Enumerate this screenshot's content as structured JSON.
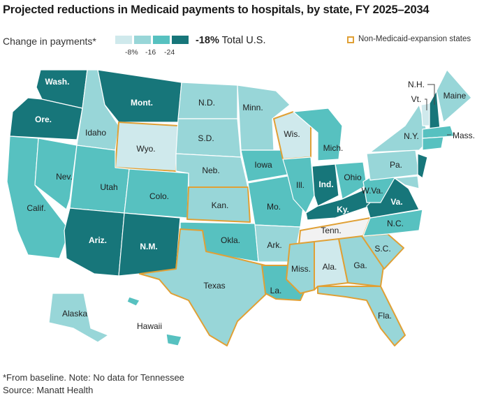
{
  "title": "Projected reductions in Medicaid payments to hospitals, by state, FY 2025–2034",
  "legend": {
    "label": "Change in payments*",
    "ticks": [
      "-8%",
      "-16",
      "-24"
    ],
    "colors": [
      "#cfe9ec",
      "#98d6d8",
      "#57c1c0",
      "#17767a"
    ]
  },
  "total": {
    "value": "-18%",
    "label": "Total U.S."
  },
  "non_expansion_label": "Non-Medicaid-expansion states",
  "non_expansion_color": "#e0a035",
  "footnote": "*From baseline. Note: No data for Tennessee",
  "source": "Source:  Manatt Health",
  "states": [
    {
      "abbr": "Wash.",
      "level": 4
    },
    {
      "abbr": "Ore.",
      "level": 4
    },
    {
      "abbr": "Calif.",
      "level": 3
    },
    {
      "abbr": "Nev.",
      "level": 3
    },
    {
      "abbr": "Idaho",
      "level": 2
    },
    {
      "abbr": "Mont.",
      "level": 4
    },
    {
      "abbr": "Wyo.",
      "level": 1,
      "non_expansion": true
    },
    {
      "abbr": "Utah",
      "level": 3
    },
    {
      "abbr": "Colo.",
      "level": 3
    },
    {
      "abbr": "Ariz.",
      "level": 4
    },
    {
      "abbr": "N.M.",
      "level": 4
    },
    {
      "abbr": "N.D.",
      "level": 2
    },
    {
      "abbr": "S.D.",
      "level": 2,
      "non_expansion": false
    },
    {
      "abbr": "Neb.",
      "level": 2
    },
    {
      "abbr": "Kan.",
      "level": 2,
      "non_expansion": true
    },
    {
      "abbr": "Okla.",
      "level": 3
    },
    {
      "abbr": "Texas",
      "level": 2,
      "non_expansion": true
    },
    {
      "abbr": "Minn.",
      "level": 2
    },
    {
      "abbr": "Iowa",
      "level": 3
    },
    {
      "abbr": "Mo.",
      "level": 3
    },
    {
      "abbr": "Ark.",
      "level": 2
    },
    {
      "abbr": "La.",
      "level": 3
    },
    {
      "abbr": "Wis.",
      "level": 1,
      "non_expansion": true
    },
    {
      "abbr": "Ill.",
      "level": 3
    },
    {
      "abbr": "Mich.",
      "level": 3
    },
    {
      "abbr": "Ind.",
      "level": 4
    },
    {
      "abbr": "Ohio",
      "level": 3
    },
    {
      "abbr": "Ky.",
      "level": 4
    },
    {
      "abbr": "Tenn.",
      "level": 0,
      "non_expansion": true
    },
    {
      "abbr": "Miss.",
      "level": 2,
      "non_expansion": true
    },
    {
      "abbr": "Ala.",
      "level": 1,
      "non_expansion": true
    },
    {
      "abbr": "Ga.",
      "level": 2,
      "non_expansion": true
    },
    {
      "abbr": "Fla.",
      "level": 2,
      "non_expansion": true
    },
    {
      "abbr": "S.C.",
      "level": 2,
      "non_expansion": true
    },
    {
      "abbr": "N.C.",
      "level": 3
    },
    {
      "abbr": "Va.",
      "level": 4
    },
    {
      "abbr": "W.Va.",
      "level": 3
    },
    {
      "abbr": "Pa.",
      "level": 2
    },
    {
      "abbr": "N.Y.",
      "level": 2
    },
    {
      "abbr": "Vt.",
      "level": 1
    },
    {
      "abbr": "N.H.",
      "level": 4
    },
    {
      "abbr": "Maine",
      "level": 2
    },
    {
      "abbr": "Mass.",
      "level": 3
    },
    {
      "abbr": "Alaska",
      "level": 2
    },
    {
      "abbr": "Hawaii",
      "level": 3
    }
  ]
}
